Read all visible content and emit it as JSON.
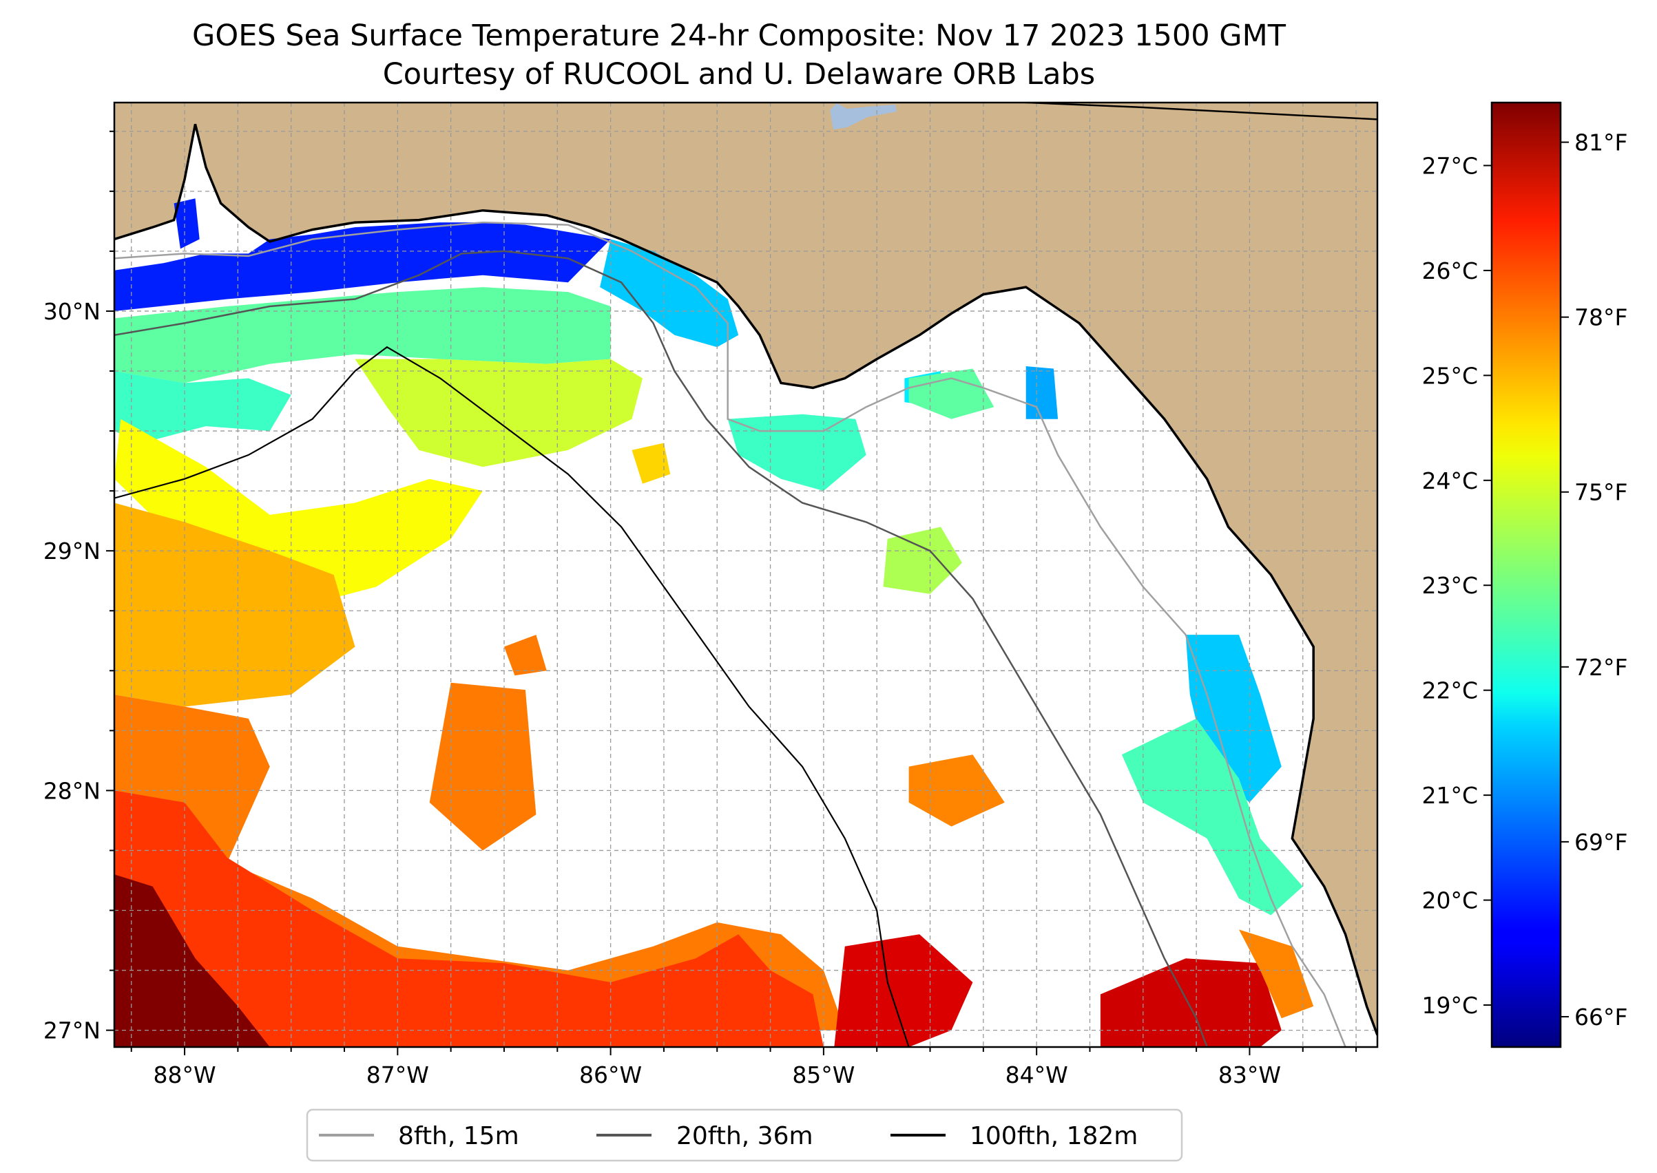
{
  "title": "GOES Sea Surface Temperature 24-hr Composite: Nov 17 2023 1500 GMT",
  "subtitle": "Courtesy of RUCOOL and U. Delaware ORB Labs",
  "map": {
    "lon_range": [
      -88.33,
      -82.4
    ],
    "lat_range": [
      26.93,
      30.87
    ],
    "lon_ticks": [
      {
        "value": -88,
        "label": "88°W"
      },
      {
        "value": -87,
        "label": "87°W"
      },
      {
        "value": -86,
        "label": "86°W"
      },
      {
        "value": -85,
        "label": "85°W"
      },
      {
        "value": -84,
        "label": "84°W"
      },
      {
        "value": -83,
        "label": "83°W"
      }
    ],
    "lat_ticks": [
      {
        "value": 27,
        "label": "27°N"
      },
      {
        "value": 28,
        "label": "28°N"
      },
      {
        "value": 29,
        "label": "29°N"
      },
      {
        "value": 30,
        "label": "30°N"
      }
    ],
    "land_color": "#d0b48c",
    "grid": "dashed, every 0.25 degree"
  },
  "isobaths": [
    {
      "label": "8fth, 15m",
      "color": "#a0a0a0"
    },
    {
      "label": "20fth, 36m",
      "color": "#555555"
    },
    {
      "label": "100fth, 182m",
      "color": "#000000"
    }
  ],
  "colorbar": {
    "colormap": "jet",
    "range_c": [
      18.6,
      27.6
    ],
    "celsius_ticks": [
      {
        "value": 19,
        "label": "19°C"
      },
      {
        "value": 20,
        "label": "20°C"
      },
      {
        "value": 21,
        "label": "21°C"
      },
      {
        "value": 22,
        "label": "22°C"
      },
      {
        "value": 23,
        "label": "23°C"
      },
      {
        "value": 24,
        "label": "24°C"
      },
      {
        "value": 25,
        "label": "25°C"
      },
      {
        "value": 26,
        "label": "26°C"
      },
      {
        "value": 27,
        "label": "27°C"
      }
    ],
    "fahrenheit_ticks": [
      {
        "value": 66,
        "label": "66°F"
      },
      {
        "value": 69,
        "label": "69°F"
      },
      {
        "value": 72,
        "label": "72°F"
      },
      {
        "value": 75,
        "label": "75°F"
      },
      {
        "value": 78,
        "label": "78°F"
      },
      {
        "value": 81,
        "label": "81°F"
      }
    ]
  },
  "sst_regions": [
    {
      "temp_c": 20.0,
      "points": [
        [
          -88.33,
          30.17
        ],
        [
          -88.1,
          30.2
        ],
        [
          -87.9,
          30.24
        ],
        [
          -87.7,
          30.24
        ],
        [
          -87.6,
          30.3
        ],
        [
          -87.4,
          30.32
        ],
        [
          -87.2,
          30.35
        ],
        [
          -87.0,
          30.36
        ],
        [
          -86.8,
          30.37
        ],
        [
          -86.6,
          30.37
        ],
        [
          -86.4,
          30.36
        ],
        [
          -86.2,
          30.33
        ],
        [
          -86.0,
          30.3
        ],
        [
          -86.2,
          30.12
        ],
        [
          -86.6,
          30.15
        ],
        [
          -87.0,
          30.12
        ],
        [
          -87.4,
          30.08
        ],
        [
          -87.8,
          30.05
        ],
        [
          -88.33,
          30.0
        ]
      ]
    },
    {
      "temp_c": 20.0,
      "points": [
        [
          -88.05,
          30.45
        ],
        [
          -87.95,
          30.47
        ],
        [
          -87.93,
          30.3
        ],
        [
          -88.02,
          30.26
        ]
      ]
    },
    {
      "temp_c": 21.5,
      "points": [
        [
          -86.0,
          30.3
        ],
        [
          -85.8,
          30.25
        ],
        [
          -85.6,
          30.15
        ],
        [
          -85.45,
          30.05
        ],
        [
          -85.4,
          29.9
        ],
        [
          -85.5,
          29.85
        ],
        [
          -85.7,
          29.9
        ],
        [
          -85.85,
          30.0
        ],
        [
          -86.05,
          30.1
        ]
      ]
    },
    {
      "temp_c": 22.8,
      "points": [
        [
          -88.33,
          29.97
        ],
        [
          -87.8,
          30.02
        ],
        [
          -87.4,
          30.05
        ],
        [
          -87.0,
          30.08
        ],
        [
          -86.6,
          30.1
        ],
        [
          -86.2,
          30.08
        ],
        [
          -86.0,
          30.02
        ],
        [
          -86.0,
          29.8
        ],
        [
          -86.3,
          29.78
        ],
        [
          -86.8,
          29.8
        ],
        [
          -87.2,
          29.82
        ],
        [
          -87.6,
          29.78
        ],
        [
          -88.0,
          29.7
        ],
        [
          -88.33,
          29.75
        ]
      ]
    },
    {
      "temp_c": 22.5,
      "points": [
        [
          -88.33,
          29.75
        ],
        [
          -88.0,
          29.7
        ],
        [
          -87.7,
          29.72
        ],
        [
          -87.5,
          29.65
        ],
        [
          -87.6,
          29.5
        ],
        [
          -87.9,
          29.52
        ],
        [
          -88.2,
          29.45
        ],
        [
          -88.33,
          29.5
        ]
      ]
    },
    {
      "temp_c": 23.8,
      "points": [
        [
          -87.2,
          29.8
        ],
        [
          -86.8,
          29.8
        ],
        [
          -86.3,
          29.78
        ],
        [
          -86.0,
          29.8
        ],
        [
          -85.85,
          29.72
        ],
        [
          -85.9,
          29.55
        ],
        [
          -86.2,
          29.42
        ],
        [
          -86.6,
          29.35
        ],
        [
          -86.9,
          29.42
        ],
        [
          -87.05,
          29.6
        ]
      ]
    },
    {
      "temp_c": 24.6,
      "points": [
        [
          -85.9,
          29.42
        ],
        [
          -85.75,
          29.45
        ],
        [
          -85.72,
          29.32
        ],
        [
          -85.85,
          29.28
        ]
      ]
    },
    {
      "temp_c": 22.5,
      "points": [
        [
          -85.45,
          29.55
        ],
        [
          -85.1,
          29.57
        ],
        [
          -84.85,
          29.55
        ],
        [
          -84.8,
          29.4
        ],
        [
          -85.0,
          29.25
        ],
        [
          -85.2,
          29.3
        ],
        [
          -85.4,
          29.4
        ]
      ]
    },
    {
      "temp_c": 21.8,
      "points": [
        [
          -84.62,
          29.72
        ],
        [
          -84.45,
          29.75
        ],
        [
          -84.45,
          29.6
        ],
        [
          -84.62,
          29.62
        ]
      ]
    },
    {
      "temp_c": 21.2,
      "points": [
        [
          -84.05,
          29.77
        ],
        [
          -83.92,
          29.76
        ],
        [
          -83.9,
          29.55
        ],
        [
          -84.05,
          29.55
        ]
      ]
    },
    {
      "temp_c": 23.5,
      "points": [
        [
          -84.7,
          29.05
        ],
        [
          -84.45,
          29.1
        ],
        [
          -84.35,
          28.95
        ],
        [
          -84.5,
          28.82
        ],
        [
          -84.72,
          28.85
        ]
      ]
    },
    {
      "temp_c": 24.2,
      "points": [
        [
          -88.3,
          29.55
        ],
        [
          -87.9,
          29.35
        ],
        [
          -87.6,
          29.15
        ],
        [
          -87.2,
          29.2
        ],
        [
          -86.85,
          29.3
        ],
        [
          -86.6,
          29.25
        ],
        [
          -86.75,
          29.05
        ],
        [
          -87.1,
          28.85
        ],
        [
          -87.4,
          28.78
        ],
        [
          -87.8,
          28.85
        ],
        [
          -88.1,
          29.1
        ],
        [
          -88.33,
          29.3
        ]
      ]
    },
    {
      "temp_c": 24.9,
      "points": [
        [
          -88.33,
          29.2
        ],
        [
          -88.0,
          29.12
        ],
        [
          -87.6,
          29.0
        ],
        [
          -87.3,
          28.9
        ],
        [
          -87.2,
          28.6
        ],
        [
          -87.5,
          28.4
        ],
        [
          -88.0,
          28.35
        ],
        [
          -88.33,
          28.4
        ]
      ]
    },
    {
      "temp_c": 25.4,
      "points": [
        [
          -88.33,
          28.4
        ],
        [
          -88.0,
          28.35
        ],
        [
          -87.7,
          28.3
        ],
        [
          -87.6,
          28.1
        ],
        [
          -87.8,
          27.7
        ],
        [
          -87.4,
          27.55
        ],
        [
          -87.0,
          27.35
        ],
        [
          -86.6,
          27.3
        ],
        [
          -86.2,
          27.25
        ],
        [
          -85.8,
          27.35
        ],
        [
          -85.5,
          27.45
        ],
        [
          -85.2,
          27.4
        ],
        [
          -85.0,
          27.25
        ],
        [
          -84.9,
          27.0
        ],
        [
          -86.0,
          27.0
        ],
        [
          -87.0,
          26.93
        ],
        [
          -88.33,
          26.93
        ]
      ]
    },
    {
      "temp_c": 25.4,
      "points": [
        [
          -86.75,
          28.45
        ],
        [
          -86.4,
          28.42
        ],
        [
          -86.35,
          27.9
        ],
        [
          -86.6,
          27.75
        ],
        [
          -86.85,
          27.95
        ]
      ]
    },
    {
      "temp_c": 25.4,
      "points": [
        [
          -86.5,
          28.6
        ],
        [
          -86.35,
          28.65
        ],
        [
          -86.3,
          28.5
        ],
        [
          -86.45,
          28.48
        ]
      ]
    },
    {
      "temp_c": 25.3,
      "points": [
        [
          -84.6,
          28.1
        ],
        [
          -84.3,
          28.15
        ],
        [
          -84.15,
          27.95
        ],
        [
          -84.4,
          27.85
        ],
        [
          -84.6,
          27.95
        ]
      ]
    },
    {
      "temp_c": 26.0,
      "points": [
        [
          -88.33,
          28.0
        ],
        [
          -88.0,
          27.95
        ],
        [
          -87.8,
          27.72
        ],
        [
          -87.4,
          27.5
        ],
        [
          -87.0,
          27.3
        ],
        [
          -86.5,
          27.28
        ],
        [
          -86.0,
          27.2
        ],
        [
          -85.6,
          27.3
        ],
        [
          -85.4,
          27.4
        ],
        [
          -85.25,
          27.25
        ],
        [
          -85.05,
          27.15
        ],
        [
          -85.0,
          26.93
        ],
        [
          -88.33,
          26.93
        ]
      ]
    },
    {
      "temp_c": 26.8,
      "points": [
        [
          -84.9,
          27.35
        ],
        [
          -84.55,
          27.4
        ],
        [
          -84.3,
          27.2
        ],
        [
          -84.4,
          27.0
        ],
        [
          -84.6,
          26.93
        ],
        [
          -84.95,
          26.93
        ]
      ]
    },
    {
      "temp_c": 26.9,
      "points": [
        [
          -83.7,
          27.15
        ],
        [
          -83.3,
          27.3
        ],
        [
          -82.95,
          27.28
        ],
        [
          -82.85,
          27.0
        ],
        [
          -82.95,
          26.93
        ],
        [
          -83.7,
          26.93
        ]
      ]
    },
    {
      "temp_c": 25.3,
      "points": [
        [
          -83.05,
          27.42
        ],
        [
          -82.8,
          27.35
        ],
        [
          -82.7,
          27.1
        ],
        [
          -82.85,
          27.05
        ],
        [
          -82.95,
          27.25
        ]
      ]
    },
    {
      "temp_c": 27.6,
      "points": [
        [
          -88.33,
          27.65
        ],
        [
          -88.15,
          27.6
        ],
        [
          -87.95,
          27.3
        ],
        [
          -87.75,
          27.1
        ],
        [
          -87.6,
          26.93
        ],
        [
          -88.33,
          26.93
        ]
      ]
    },
    {
      "temp_c": 27.6,
      "points": [
        [
          -88.33,
          27.2
        ],
        [
          -88.25,
          27.2
        ],
        [
          -88.25,
          27.08
        ],
        [
          -88.33,
          27.08
        ]
      ]
    },
    {
      "temp_c": 21.5,
      "points": [
        [
          -83.3,
          28.65
        ],
        [
          -83.05,
          28.65
        ],
        [
          -82.95,
          28.4
        ],
        [
          -82.85,
          28.1
        ],
        [
          -83.0,
          27.95
        ],
        [
          -83.2,
          28.1
        ],
        [
          -83.28,
          28.4
        ]
      ]
    },
    {
      "temp_c": 22.6,
      "points": [
        [
          -83.6,
          28.15
        ],
        [
          -83.25,
          28.3
        ],
        [
          -83.05,
          28.05
        ],
        [
          -82.95,
          27.8
        ],
        [
          -82.75,
          27.6
        ],
        [
          -82.9,
          27.48
        ],
        [
          -83.05,
          27.55
        ],
        [
          -83.2,
          27.8
        ],
        [
          -83.5,
          27.95
        ]
      ]
    },
    {
      "temp_c": 22.8,
      "points": [
        [
          -84.6,
          29.72
        ],
        [
          -84.3,
          29.76
        ],
        [
          -84.2,
          29.6
        ],
        [
          -84.4,
          29.55
        ],
        [
          -84.6,
          29.62
        ]
      ]
    }
  ],
  "coastline": [
    [
      -88.33,
      30.3
    ],
    [
      -88.15,
      30.35
    ],
    [
      -88.05,
      30.38
    ],
    [
      -88.0,
      30.55
    ],
    [
      -87.95,
      30.78
    ],
    [
      -87.9,
      30.6
    ],
    [
      -87.83,
      30.45
    ],
    [
      -87.7,
      30.35
    ],
    [
      -87.6,
      30.29
    ],
    [
      -87.4,
      30.34
    ],
    [
      -87.2,
      30.37
    ],
    [
      -86.9,
      30.38
    ],
    [
      -86.6,
      30.42
    ],
    [
      -86.3,
      30.4
    ],
    [
      -86.1,
      30.35
    ],
    [
      -85.95,
      30.3
    ],
    [
      -85.7,
      30.2
    ],
    [
      -85.5,
      30.12
    ],
    [
      -85.4,
      30.02
    ],
    [
      -85.3,
      29.9
    ],
    [
      -85.2,
      29.7
    ],
    [
      -85.05,
      29.68
    ],
    [
      -84.9,
      29.72
    ],
    [
      -84.75,
      29.8
    ],
    [
      -84.55,
      29.9
    ],
    [
      -84.4,
      29.99
    ],
    [
      -84.25,
      30.07
    ],
    [
      -84.05,
      30.1
    ],
    [
      -83.8,
      29.95
    ],
    [
      -83.6,
      29.75
    ],
    [
      -83.4,
      29.55
    ],
    [
      -83.2,
      29.3
    ],
    [
      -83.1,
      29.1
    ],
    [
      -82.9,
      28.9
    ],
    [
      -82.7,
      28.6
    ],
    [
      -82.7,
      28.3
    ],
    [
      -82.75,
      28.05
    ],
    [
      -82.8,
      27.8
    ],
    [
      -82.65,
      27.6
    ],
    [
      -82.55,
      27.4
    ],
    [
      -82.45,
      27.1
    ],
    [
      -82.4,
      26.98
    ]
  ],
  "isobath_8fth": [
    [
      -88.33,
      30.22
    ],
    [
      -88.0,
      30.24
    ],
    [
      -87.7,
      30.23
    ],
    [
      -87.4,
      30.3
    ],
    [
      -87.0,
      30.34
    ],
    [
      -86.6,
      30.37
    ],
    [
      -86.2,
      30.36
    ],
    [
      -85.9,
      30.25
    ],
    [
      -85.6,
      30.1
    ],
    [
      -85.45,
      29.95
    ],
    [
      -85.45,
      29.55
    ],
    [
      -85.3,
      29.5
    ],
    [
      -85.0,
      29.5
    ],
    [
      -84.8,
      29.6
    ],
    [
      -84.6,
      29.68
    ],
    [
      -84.4,
      29.72
    ],
    [
      -84.25,
      29.68
    ],
    [
      -84.0,
      29.6
    ],
    [
      -83.9,
      29.4
    ],
    [
      -83.7,
      29.1
    ],
    [
      -83.5,
      28.85
    ],
    [
      -83.3,
      28.65
    ],
    [
      -83.2,
      28.4
    ],
    [
      -83.1,
      28.1
    ],
    [
      -83.0,
      27.8
    ],
    [
      -82.9,
      27.55
    ],
    [
      -82.8,
      27.35
    ],
    [
      -82.65,
      27.15
    ],
    [
      -82.55,
      26.93
    ]
  ],
  "isobath_20fth": [
    [
      -88.33,
      29.9
    ],
    [
      -88.0,
      29.95
    ],
    [
      -87.6,
      30.02
    ],
    [
      -87.2,
      30.05
    ],
    [
      -86.9,
      30.15
    ],
    [
      -86.7,
      30.24
    ],
    [
      -86.5,
      30.25
    ],
    [
      -86.2,
      30.22
    ],
    [
      -85.95,
      30.12
    ],
    [
      -85.8,
      29.95
    ],
    [
      -85.7,
      29.75
    ],
    [
      -85.55,
      29.55
    ],
    [
      -85.35,
      29.35
    ],
    [
      -85.1,
      29.2
    ],
    [
      -84.8,
      29.12
    ],
    [
      -84.5,
      29.0
    ],
    [
      -84.3,
      28.8
    ],
    [
      -84.1,
      28.5
    ],
    [
      -83.9,
      28.2
    ],
    [
      -83.7,
      27.9
    ],
    [
      -83.55,
      27.6
    ],
    [
      -83.4,
      27.3
    ],
    [
      -83.25,
      27.05
    ],
    [
      -83.2,
      26.93
    ]
  ],
  "isobath_100fth": [
    [
      -88.33,
      29.22
    ],
    [
      -88.0,
      29.3
    ],
    [
      -87.7,
      29.4
    ],
    [
      -87.4,
      29.55
    ],
    [
      -87.2,
      29.75
    ],
    [
      -87.05,
      29.85
    ],
    [
      -86.8,
      29.72
    ],
    [
      -86.5,
      29.52
    ],
    [
      -86.2,
      29.32
    ],
    [
      -85.95,
      29.1
    ],
    [
      -85.75,
      28.85
    ],
    [
      -85.55,
      28.6
    ],
    [
      -85.35,
      28.35
    ],
    [
      -85.1,
      28.1
    ],
    [
      -84.9,
      27.8
    ],
    [
      -84.75,
      27.5
    ],
    [
      -84.7,
      27.2
    ],
    [
      -84.6,
      26.93
    ]
  ],
  "state_border": [
    [
      -84.85,
      30.9
    ],
    [
      -83.5,
      30.85
    ],
    [
      -82.4,
      30.8
    ]
  ]
}
